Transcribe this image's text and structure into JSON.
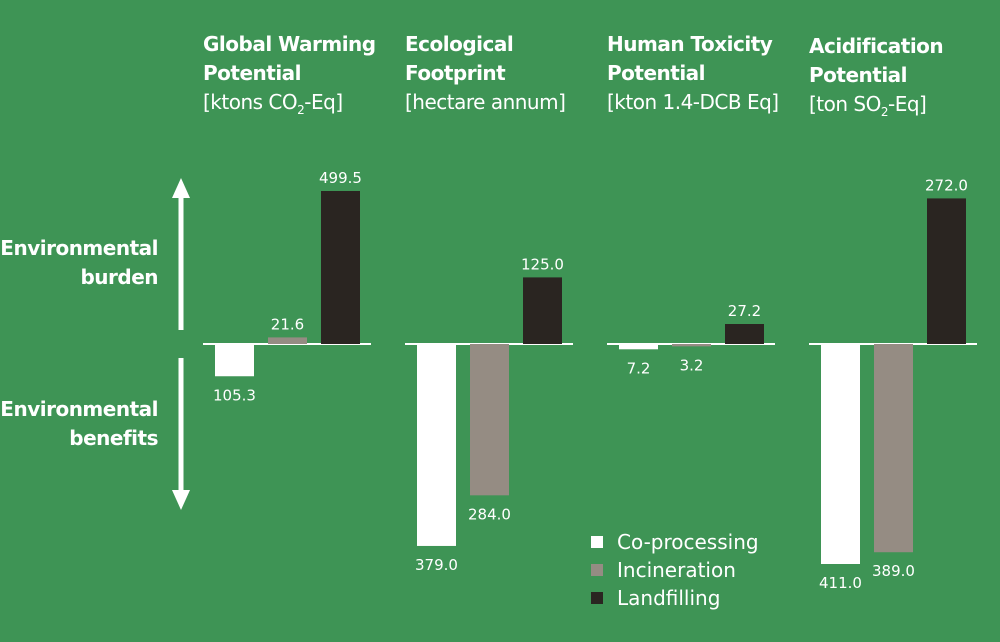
{
  "side_labels": {
    "burden": [
      "Environmental",
      "burden"
    ],
    "benefits": [
      "Environmental",
      "benefits"
    ]
  },
  "legend": [
    {
      "label": "Co-processing",
      "color": "#ffffff"
    },
    {
      "label": "Incineration",
      "color": "#958c83"
    },
    {
      "label": "Landfilling",
      "color": "#2a2521"
    }
  ],
  "chart_data": [
    {
      "type": "bar",
      "title": [
        "Global Warming",
        "Potential"
      ],
      "unit": [
        "[ktons CO",
        "2",
        "-Eq]"
      ],
      "categories": [
        "Co-processing",
        "Incineration",
        "Landfilling"
      ],
      "values": [
        -105.3,
        21.6,
        499.5
      ],
      "labels": [
        "105.3",
        "21.6",
        "499.5"
      ]
    },
    {
      "type": "bar",
      "title": [
        "Ecological",
        "Footprint"
      ],
      "unit": [
        "[hectare annum]",
        "",
        ""
      ],
      "categories": [
        "Co-processing",
        "Incineration",
        "Landfilling"
      ],
      "values": [
        -379.0,
        -284.0,
        125.0
      ],
      "labels": [
        "379.0",
        "284.0",
        "125.0"
      ]
    },
    {
      "type": "bar",
      "title": [
        "Human Toxicity",
        "Potential"
      ],
      "unit": [
        "[kton 1.4-DCB Eq]",
        "",
        ""
      ],
      "categories": [
        "Co-processing",
        "Incineration",
        "Landfilling"
      ],
      "values": [
        -7.2,
        -3.2,
        27.2
      ],
      "labels": [
        "7.2",
        "3.2",
        "27.2"
      ]
    },
    {
      "type": "bar",
      "title": [
        "Acidification",
        "Potential"
      ],
      "unit": [
        "[ton SO",
        "2",
        "-Eq]"
      ],
      "categories": [
        "Co-processing",
        "Incineration",
        "Landfilling"
      ],
      "values": [
        -411.0,
        -389.0,
        272.0
      ],
      "labels": [
        "411.0",
        "389.0",
        "272.0"
      ]
    }
  ]
}
